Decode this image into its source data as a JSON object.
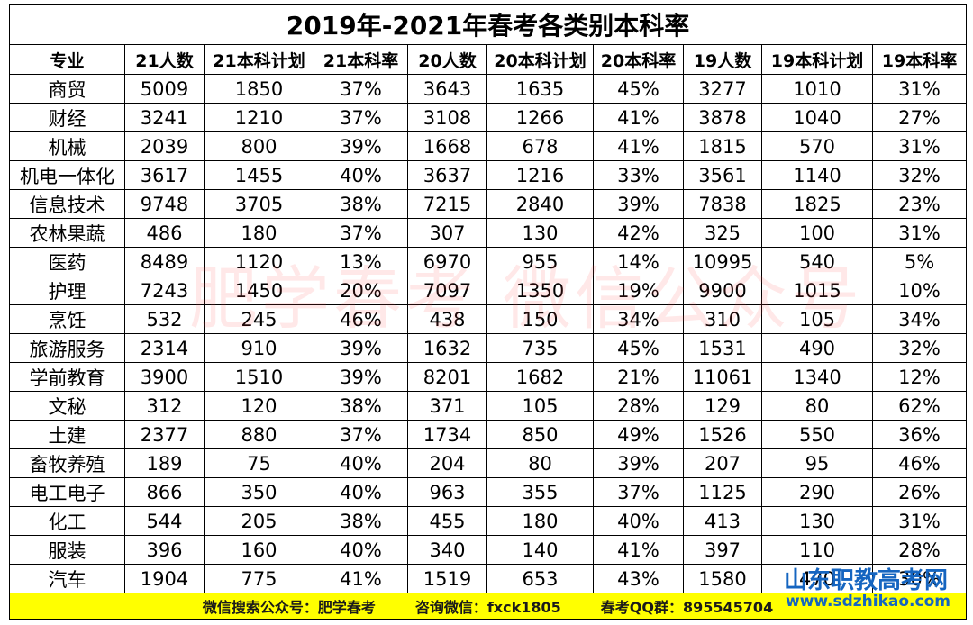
{
  "title": "2019年-2021年春考各类别本科率",
  "table": {
    "header": [
      "专业",
      "21人数",
      "21本科计划",
      "21本科率",
      "20人数",
      "20本科计划",
      "20本科率",
      "19人数",
      "19本科计划",
      "19本科率"
    ],
    "rows": [
      [
        "商贸",
        "5009",
        "1850",
        "37%",
        "3643",
        "1635",
        "45%",
        "3277",
        "1010",
        "31%"
      ],
      [
        "财经",
        "3241",
        "1210",
        "37%",
        "3108",
        "1266",
        "41%",
        "3878",
        "1040",
        "27%"
      ],
      [
        "机械",
        "2039",
        "800",
        "39%",
        "1668",
        "678",
        "41%",
        "1815",
        "570",
        "31%"
      ],
      [
        "机电一体化",
        "3617",
        "1455",
        "40%",
        "3637",
        "1216",
        "33%",
        "3561",
        "1140",
        "32%"
      ],
      [
        "信息技术",
        "9748",
        "3705",
        "38%",
        "7215",
        "2840",
        "39%",
        "7838",
        "1825",
        "23%"
      ],
      [
        "农林果蔬",
        "486",
        "180",
        "37%",
        "307",
        "130",
        "42%",
        "325",
        "100",
        "31%"
      ],
      [
        "医药",
        "8489",
        "1120",
        "13%",
        "6970",
        "955",
        "14%",
        "10995",
        "540",
        "5%"
      ],
      [
        "护理",
        "7243",
        "1450",
        "20%",
        "7097",
        "1350",
        "19%",
        "9900",
        "1015",
        "10%"
      ],
      [
        "烹饪",
        "532",
        "245",
        "46%",
        "438",
        "150",
        "34%",
        "310",
        "105",
        "34%"
      ],
      [
        "旅游服务",
        "2314",
        "910",
        "39%",
        "1632",
        "735",
        "45%",
        "1531",
        "490",
        "32%"
      ],
      [
        "学前教育",
        "3900",
        "1510",
        "39%",
        "8201",
        "1682",
        "21%",
        "11061",
        "1340",
        "12%"
      ],
      [
        "文秘",
        "312",
        "120",
        "38%",
        "371",
        "105",
        "28%",
        "129",
        "80",
        "62%"
      ],
      [
        "土建",
        "2377",
        "880",
        "37%",
        "1734",
        "850",
        "49%",
        "1526",
        "550",
        "36%"
      ],
      [
        "畜牧养殖",
        "189",
        "75",
        "40%",
        "204",
        "80",
        "39%",
        "207",
        "95",
        "46%"
      ],
      [
        "电工电子",
        "866",
        "350",
        "40%",
        "963",
        "355",
        "37%",
        "1125",
        "290",
        "26%"
      ],
      [
        "化工",
        "544",
        "205",
        "38%",
        "455",
        "180",
        "40%",
        "413",
        "130",
        "31%"
      ],
      [
        "服装",
        "396",
        "160",
        "40%",
        "340",
        "140",
        "41%",
        "397",
        "110",
        "28%"
      ],
      [
        "汽车",
        "1904",
        "775",
        "41%",
        "1519",
        "653",
        "43%",
        "1580",
        "470",
        "30%"
      ]
    ]
  },
  "footer": [
    "微信搜索公众号：肥学春考",
    "咨询微信：fxck1805",
    "春考QQ群：895545704"
  ],
  "watermark": "肥学春考 微信公众号",
  "logo": {
    "name": "山东职教高考网",
    "url": "www.sdzhikao.com"
  }
}
